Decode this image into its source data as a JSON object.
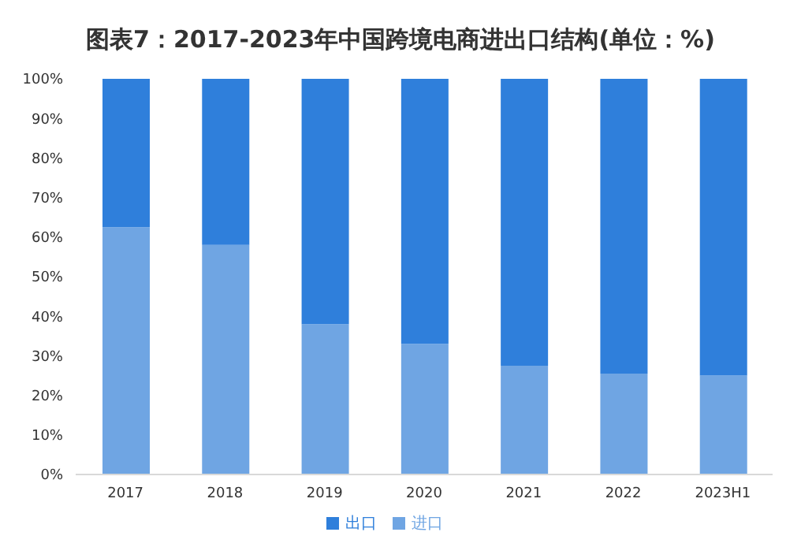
{
  "chart_data": {
    "type": "bar",
    "title": "图表7：2017-2023年中国跨境电商进出口结构(单位：%)",
    "categories": [
      "2017",
      "2018",
      "2019",
      "2020",
      "2021",
      "2022",
      "2023H1"
    ],
    "series": [
      {
        "name": "进口",
        "color": "#6fa5e3",
        "values": [
          62.5,
          58,
          38,
          33,
          27.5,
          25.5,
          25
        ]
      },
      {
        "name": "出口",
        "color": "#2f7fdb",
        "values": [
          37.5,
          42,
          62,
          67,
          72.5,
          74.5,
          75
        ]
      }
    ],
    "stacked": true,
    "ylim": [
      0,
      100
    ],
    "yticks": [
      {
        "value": 0,
        "label": "0%"
      },
      {
        "value": 10,
        "label": "10%"
      },
      {
        "value": 20,
        "label": "20%"
      },
      {
        "value": 30,
        "label": "30%"
      },
      {
        "value": 40,
        "label": "40%"
      },
      {
        "value": 50,
        "label": "50%"
      },
      {
        "value": 60,
        "label": "60%"
      },
      {
        "value": 70,
        "label": "70%"
      },
      {
        "value": 80,
        "label": "80%"
      },
      {
        "value": 90,
        "label": "90%"
      },
      {
        "value": 100,
        "label": "100%"
      }
    ],
    "legend": "bottom"
  }
}
